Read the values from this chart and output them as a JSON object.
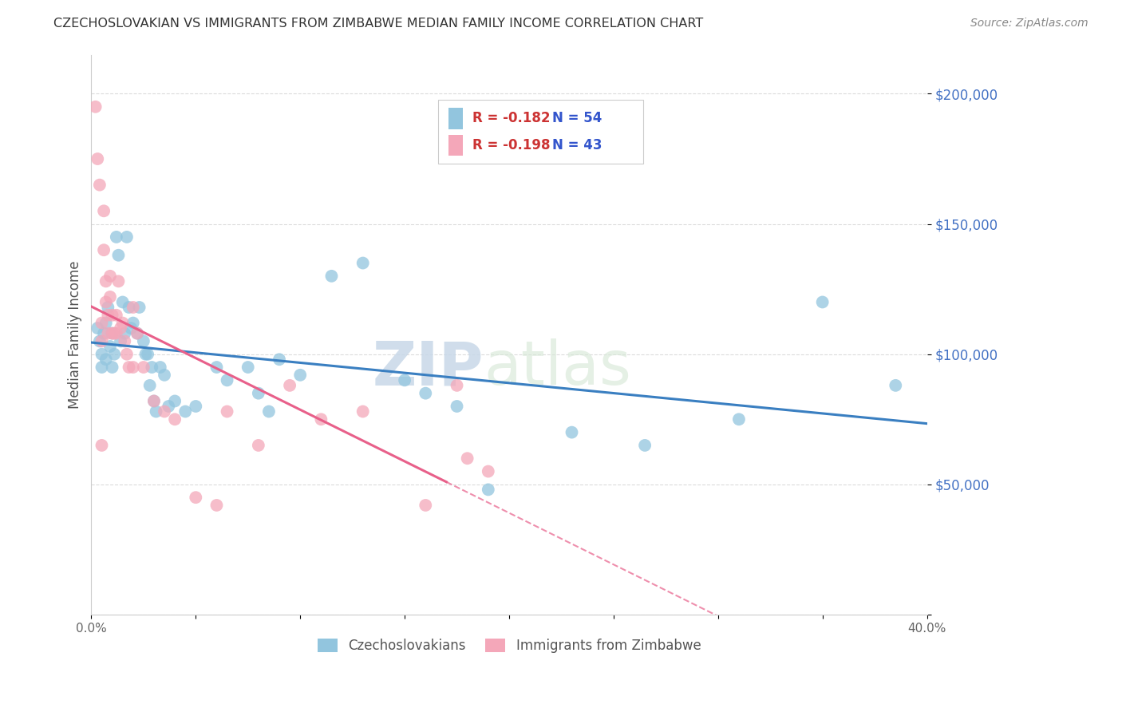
{
  "title": "CZECHOSLOVAKIAN VS IMMIGRANTS FROM ZIMBABWE MEDIAN FAMILY INCOME CORRELATION CHART",
  "source": "Source: ZipAtlas.com",
  "ylabel": "Median Family Income",
  "y_ticks": [
    0,
    50000,
    100000,
    150000,
    200000
  ],
  "y_tick_labels": [
    "",
    "$50,000",
    "$100,000",
    "$150,000",
    "$200,000"
  ],
  "x_ticks": [
    0.0,
    0.05,
    0.1,
    0.15,
    0.2,
    0.25,
    0.3,
    0.35,
    0.4
  ],
  "x_tick_labels": [
    "0.0%",
    "",
    "",
    "",
    "",
    "",
    "",
    "",
    "40.0%"
  ],
  "x_range": [
    0.0,
    0.4
  ],
  "y_range": [
    0,
    215000
  ],
  "legend_blue_r": "R = -0.182",
  "legend_blue_n": "N = 54",
  "legend_pink_r": "R = -0.198",
  "legend_pink_n": "N = 43",
  "blue_color": "#92c5de",
  "pink_color": "#f4a7b9",
  "blue_line_color": "#3a7fc1",
  "pink_line_color": "#e8608a",
  "grid_color": "#cccccc",
  "title_color": "#333333",
  "source_color": "#888888",
  "ytick_color": "#4472C4",
  "watermark_zip": "ZIP",
  "watermark_atlas": "atlas",
  "blue_label": "Czechoslovakians",
  "pink_label": "Immigrants from Zimbabwe",
  "blue_scatter_x": [
    0.003,
    0.004,
    0.005,
    0.005,
    0.006,
    0.007,
    0.007,
    0.008,
    0.009,
    0.01,
    0.01,
    0.011,
    0.012,
    0.013,
    0.014,
    0.015,
    0.016,
    0.017,
    0.018,
    0.019,
    0.02,
    0.022,
    0.023,
    0.025,
    0.026,
    0.027,
    0.028,
    0.029,
    0.03,
    0.031,
    0.033,
    0.035,
    0.037,
    0.04,
    0.045,
    0.05,
    0.06,
    0.065,
    0.075,
    0.08,
    0.085,
    0.09,
    0.1,
    0.115,
    0.13,
    0.15,
    0.16,
    0.175,
    0.19,
    0.23,
    0.265,
    0.31,
    0.35,
    0.385
  ],
  "blue_scatter_y": [
    110000,
    105000,
    100000,
    95000,
    108000,
    112000,
    98000,
    118000,
    103000,
    108000,
    95000,
    100000,
    145000,
    138000,
    105000,
    120000,
    108000,
    145000,
    118000,
    110000,
    112000,
    108000,
    118000,
    105000,
    100000,
    100000,
    88000,
    95000,
    82000,
    78000,
    95000,
    92000,
    80000,
    82000,
    78000,
    80000,
    95000,
    90000,
    95000,
    85000,
    78000,
    98000,
    92000,
    130000,
    135000,
    90000,
    85000,
    80000,
    48000,
    70000,
    65000,
    75000,
    120000,
    88000
  ],
  "pink_scatter_x": [
    0.002,
    0.003,
    0.004,
    0.005,
    0.005,
    0.006,
    0.006,
    0.007,
    0.007,
    0.008,
    0.008,
    0.009,
    0.009,
    0.01,
    0.01,
    0.011,
    0.012,
    0.012,
    0.013,
    0.014,
    0.015,
    0.016,
    0.017,
    0.018,
    0.02,
    0.022,
    0.025,
    0.03,
    0.035,
    0.04,
    0.05,
    0.06,
    0.005,
    0.02,
    0.065,
    0.08,
    0.095,
    0.11,
    0.13,
    0.16,
    0.175,
    0.18,
    0.19
  ],
  "pink_scatter_y": [
    195000,
    175000,
    165000,
    112000,
    105000,
    155000,
    140000,
    128000,
    120000,
    115000,
    108000,
    130000,
    122000,
    115000,
    108000,
    108000,
    115000,
    108000,
    128000,
    110000,
    112000,
    105000,
    100000,
    95000,
    95000,
    108000,
    95000,
    82000,
    78000,
    75000,
    45000,
    42000,
    65000,
    118000,
    78000,
    65000,
    88000,
    75000,
    78000,
    42000,
    88000,
    60000,
    55000
  ]
}
